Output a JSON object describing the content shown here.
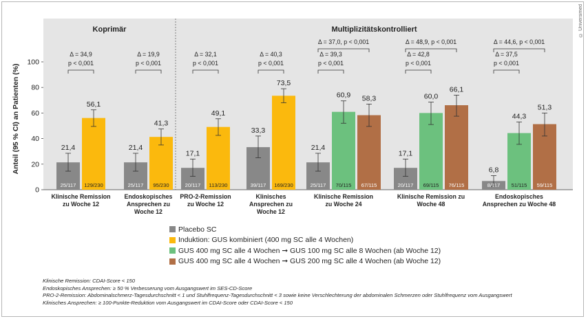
{
  "copyright": "© Universimed",
  "colors": {
    "panel_bg": "#e5e5e5",
    "placebo": "#888888",
    "induction": "#fbb90d",
    "gus100": "#6cc17e",
    "gus200": "#b16f46"
  },
  "chart_data": {
    "type": "bar",
    "ylabel": "Anteil (95 % CI) an Patienten (%)",
    "ylim": [
      0,
      100
    ],
    "yticks": [
      0,
      20,
      40,
      60,
      80,
      100
    ],
    "panels": [
      {
        "title": "Koprimär"
      },
      {
        "title": "Multiplizitätskontrolliert"
      }
    ],
    "series": [
      {
        "name": "Placebo SC",
        "color": "#888888"
      },
      {
        "name": "Induktion: GUS kombiniert (400 mg SC alle 4 Wochen)",
        "color": "#fbb90d"
      },
      {
        "name": "GUS 400 mg SC alle 4 Wochen ➞ GUS 100 mg SC alle 8 Wochen (ab Woche 12)",
        "color": "#6cc17e"
      },
      {
        "name": "GUS 400 mg SC alle 4 Wochen ➞ GUS 200 mg SC alle 4 Wochen (ab Woche 12)",
        "color": "#b16f46"
      }
    ],
    "groups": [
      {
        "label": [
          "Klinische Remission",
          "zu Woche 12"
        ],
        "bars": [
          {
            "series": 0,
            "value": 21.4,
            "label": "21,4",
            "ci": [
              14.5,
              28.5
            ],
            "n": "25/117"
          },
          {
            "series": 1,
            "value": 56.1,
            "label": "56,1",
            "ci": [
              49.5,
              62.5
            ],
            "n": "129/230"
          }
        ],
        "brackets": [
          {
            "from": 0,
            "to": 1,
            "lines": [
              "Δ = 34,9",
              "p < 0,001"
            ]
          }
        ]
      },
      {
        "label": [
          "Endoskopisches",
          "Ansprechen zu",
          "Woche 12"
        ],
        "bars": [
          {
            "series": 0,
            "value": 21.4,
            "label": "21,4",
            "ci": [
              14.5,
              28.5
            ],
            "n": "25/117"
          },
          {
            "series": 1,
            "value": 41.3,
            "label": "41,3",
            "ci": [
              35,
              47.5
            ],
            "n": "95/230"
          }
        ],
        "brackets": [
          {
            "from": 0,
            "to": 1,
            "lines": [
              "Δ = 19,9",
              "p < 0,001"
            ]
          }
        ]
      },
      {
        "label": [
          "PRO-2-Remission",
          "zu Woche 12"
        ],
        "bars": [
          {
            "series": 0,
            "value": 17.1,
            "label": "17,1",
            "ci": [
              10.5,
              24
            ],
            "n": "20/117"
          },
          {
            "series": 1,
            "value": 49.1,
            "label": "49,1",
            "ci": [
              42.5,
              55.5
            ],
            "n": "113/230"
          }
        ],
        "brackets": [
          {
            "from": 0,
            "to": 1,
            "lines": [
              "Δ = 32,1",
              "p < 0,001"
            ]
          }
        ]
      },
      {
        "label": [
          "Klinisches",
          "Ansprechen zu",
          "Woche 12"
        ],
        "bars": [
          {
            "series": 0,
            "value": 33.3,
            "label": "33,3",
            "ci": [
              25,
              42
            ],
            "n": "39/117"
          },
          {
            "series": 1,
            "value": 73.5,
            "label": "73,5",
            "ci": [
              68,
              79
            ],
            "n": "169/230"
          }
        ],
        "brackets": [
          {
            "from": 0,
            "to": 1,
            "lines": [
              "Δ = 40,3",
              "p < 0,001"
            ]
          }
        ]
      },
      {
        "label": [
          "Klinische Remission",
          "zu Woche 24"
        ],
        "bars": [
          {
            "series": 0,
            "value": 21.4,
            "label": "21,4",
            "ci": [
              14.5,
              28.5
            ],
            "n": "25/117"
          },
          {
            "series": 2,
            "value": 60.9,
            "label": "60,9",
            "ci": [
              52,
              69.5
            ],
            "n": "70/115"
          },
          {
            "series": 3,
            "value": 58.3,
            "label": "58,3",
            "ci": [
              49.5,
              67
            ],
            "n": "67/115"
          }
        ],
        "brackets": [
          {
            "from": 0,
            "to": 1,
            "lines": [
              "Δ = 39,3",
              "p < 0,001"
            ]
          },
          {
            "from": 0,
            "to": 2,
            "lines": [
              "Δ = 37,0, p < 0,001"
            ]
          }
        ]
      },
      {
        "label": [
          "Klinische Remission zu",
          "Woche 48"
        ],
        "bars": [
          {
            "series": 0,
            "value": 17.1,
            "label": "17,1",
            "ci": [
              10.5,
              24
            ],
            "n": "20/117"
          },
          {
            "series": 2,
            "value": 60.0,
            "label": "60,0",
            "ci": [
              51,
              68.5
            ],
            "n": "69/115"
          },
          {
            "series": 3,
            "value": 66.1,
            "label": "66,1",
            "ci": [
              57.5,
              74
            ],
            "n": "76/115"
          }
        ],
        "brackets": [
          {
            "from": 0,
            "to": 1,
            "lines": [
              "Δ = 42,8",
              "p < 0,001"
            ]
          },
          {
            "from": 0,
            "to": 2,
            "lines": [
              "Δ = 48,9, p < 0,001"
            ]
          }
        ]
      },
      {
        "label": [
          "Endoskopisches",
          "Ansprechen zu Woche 48"
        ],
        "bars": [
          {
            "series": 0,
            "value": 6.8,
            "label": "6,8",
            "ci": [
              2.5,
              11
            ],
            "n": "8/117"
          },
          {
            "series": 2,
            "value": 44.3,
            "label": "44,3",
            "ci": [
              35.5,
              53
            ],
            "n": "51/115"
          },
          {
            "series": 3,
            "value": 51.3,
            "label": "51,3",
            "ci": [
              42,
              60
            ],
            "n": "59/115"
          }
        ],
        "brackets": [
          {
            "from": 0,
            "to": 1,
            "lines": [
              "Δ = 37,5",
              "p < 0,001"
            ]
          },
          {
            "from": 0,
            "to": 2,
            "lines": [
              "Δ = 44,6, p < 0,001"
            ]
          }
        ]
      }
    ]
  },
  "footnotes": [
    "Klinische Remission: CDAI-Score < 150",
    "Endoskopisches Ansprechen: ≥ 50 % Verbesserung vom Ausgangswert im SES-CD-Score",
    "PRO-2-Remission: Abdominalschmerz-Tagesdurchschnitt < 1 und Stuhlfrequenz-Tagesdurchschnitt < 3 sowie keine Verschlechterung der abdominalen Schmerzen oder Stuhlfrequenz vom Ausgangswert",
    "Klinisches Ansprechen: ≥ 100-Punkte-Reduktion vom Ausgangswert im CDAI-Score oder CDAI-Score < 150"
  ]
}
